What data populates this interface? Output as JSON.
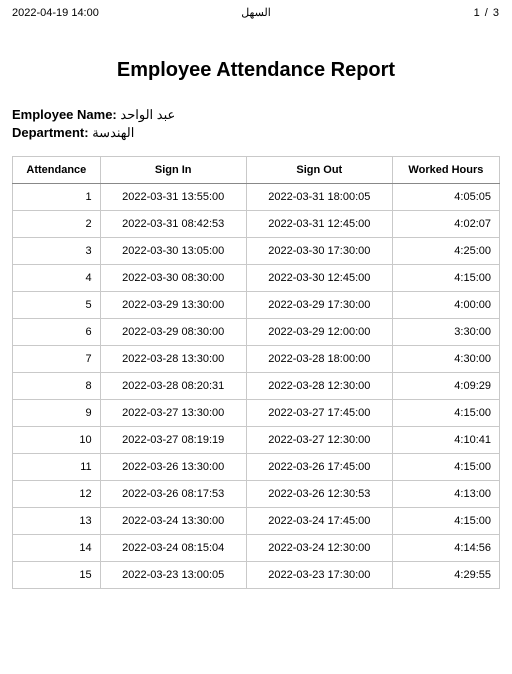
{
  "header": {
    "timestamp": "2022-04-19 14:00",
    "center": "السهل",
    "page_current": "1",
    "page_sep": "/",
    "page_total": "3"
  },
  "title": "Employee Attendance Report",
  "meta": {
    "name_label": "Employee Name:",
    "name_value": "عبد الواحد",
    "dept_label": "Department:",
    "dept_value": "الهندسة"
  },
  "table": {
    "columns": [
      "Attendance",
      "Sign In",
      "Sign Out",
      "Worked Hours"
    ],
    "rows": [
      [
        "1",
        "2022-03-31 13:55:00",
        "2022-03-31 18:00:05",
        "4:05:05"
      ],
      [
        "2",
        "2022-03-31 08:42:53",
        "2022-03-31 12:45:00",
        "4:02:07"
      ],
      [
        "3",
        "2022-03-30 13:05:00",
        "2022-03-30 17:30:00",
        "4:25:00"
      ],
      [
        "4",
        "2022-03-30 08:30:00",
        "2022-03-30 12:45:00",
        "4:15:00"
      ],
      [
        "5",
        "2022-03-29 13:30:00",
        "2022-03-29 17:30:00",
        "4:00:00"
      ],
      [
        "6",
        "2022-03-29 08:30:00",
        "2022-03-29 12:00:00",
        "3:30:00"
      ],
      [
        "7",
        "2022-03-28 13:30:00",
        "2022-03-28 18:00:00",
        "4:30:00"
      ],
      [
        "8",
        "2022-03-28 08:20:31",
        "2022-03-28 12:30:00",
        "4:09:29"
      ],
      [
        "9",
        "2022-03-27 13:30:00",
        "2022-03-27 17:45:00",
        "4:15:00"
      ],
      [
        "10",
        "2022-03-27 08:19:19",
        "2022-03-27 12:30:00",
        "4:10:41"
      ],
      [
        "11",
        "2022-03-26 13:30:00",
        "2022-03-26 17:45:00",
        "4:15:00"
      ],
      [
        "12",
        "2022-03-26 08:17:53",
        "2022-03-26 12:30:53",
        "4:13:00"
      ],
      [
        "13",
        "2022-03-24 13:30:00",
        "2022-03-24 17:45:00",
        "4:15:00"
      ],
      [
        "14",
        "2022-03-24 08:15:04",
        "2022-03-24 12:30:00",
        "4:14:56"
      ],
      [
        "15",
        "2022-03-23 13:00:05",
        "2022-03-23 17:30:00",
        "4:29:55"
      ]
    ],
    "sep_rows": [
      8,
      12
    ]
  }
}
